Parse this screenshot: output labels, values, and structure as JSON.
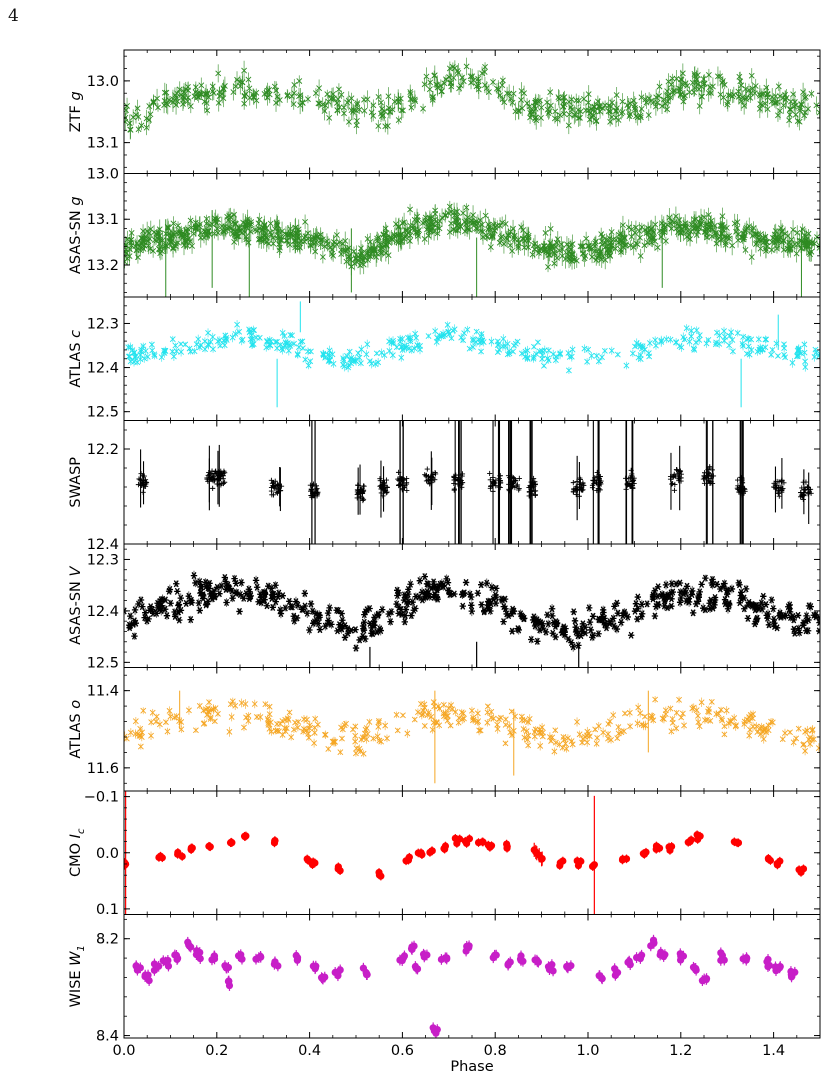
{
  "page_number": "4",
  "figure": {
    "xlabel": "Phase",
    "x_ticks": [
      "0.0",
      "0.2",
      "0.4",
      "0.6",
      "0.8",
      "1.0",
      "1.2",
      "1.4"
    ]
  },
  "chart_data": [
    {
      "id": "ztf-g",
      "type": "scatter",
      "ylabel": "ZTF g",
      "ylim": [
        13.15,
        12.95
      ],
      "inverted_y": true,
      "yticks": [
        13.0,
        13.1
      ],
      "ytick_labels": [
        "13.0",
        "13.1"
      ],
      "xlim": [
        0,
        1.5
      ],
      "color": "#2e8b22",
      "marker": "x",
      "series": [
        {
          "x": [
            0.0,
            0.05,
            0.1,
            0.15,
            0.2,
            0.25,
            0.3,
            0.35,
            0.4,
            0.45,
            0.5,
            0.55,
            0.6,
            0.65,
            0.7,
            0.75,
            0.8,
            0.85,
            0.9,
            0.95,
            1.0,
            1.05,
            1.1,
            1.15,
            1.2,
            1.25,
            1.3,
            1.35,
            1.4,
            1.45,
            1.5
          ],
          "y": [
            13.07,
            13.05,
            13.03,
            13.02,
            13.02,
            13.01,
            13.02,
            13.02,
            13.02,
            13.03,
            13.05,
            13.05,
            13.04,
            13.02,
            13.0,
            13.0,
            13.01,
            13.03,
            13.05,
            13.04,
            13.05,
            13.05,
            13.05,
            13.03,
            13.01,
            13.01,
            13.02,
            13.02,
            13.03,
            13.04,
            13.04
          ]
        }
      ]
    },
    {
      "id": "asassn-g",
      "type": "scatter",
      "ylabel": "ASAS-SN g",
      "ylim": [
        13.27,
        13.0
      ],
      "inverted_y": true,
      "yticks": [
        13.0,
        13.1,
        13.2
      ],
      "ytick_labels": [
        "13.0",
        "13.1",
        "13.2"
      ],
      "xlim": [
        0,
        1.5
      ],
      "color": "#2e8b22",
      "marker": "x",
      "series": [
        {
          "x": [
            0.0,
            0.05,
            0.1,
            0.15,
            0.2,
            0.25,
            0.3,
            0.35,
            0.4,
            0.45,
            0.5,
            0.55,
            0.6,
            0.65,
            0.7,
            0.75,
            0.8,
            0.85,
            0.9,
            0.95,
            1.0,
            1.05,
            1.1,
            1.15,
            1.2,
            1.25,
            1.3,
            1.35,
            1.4,
            1.45,
            1.5
          ],
          "y": [
            13.17,
            13.15,
            13.14,
            13.13,
            13.12,
            13.12,
            13.13,
            13.14,
            13.14,
            13.16,
            13.18,
            13.16,
            13.13,
            13.11,
            13.1,
            13.11,
            13.13,
            13.15,
            13.16,
            13.17,
            13.17,
            13.16,
            13.14,
            13.13,
            13.12,
            13.12,
            13.13,
            13.14,
            13.15,
            13.15,
            13.15
          ]
        }
      ]
    },
    {
      "id": "atlas-c",
      "type": "scatter",
      "ylabel": "ATLAS c",
      "ylim": [
        12.52,
        12.24
      ],
      "inverted_y": true,
      "yticks": [
        12.3,
        12.4,
        12.5
      ],
      "ytick_labels": [
        "12.3",
        "12.4",
        "12.5"
      ],
      "xlim": [
        0,
        1.5
      ],
      "color": "#22e3ee",
      "marker": "x",
      "series": [
        {
          "x": [
            0.0,
            0.05,
            0.1,
            0.15,
            0.2,
            0.25,
            0.3,
            0.35,
            0.4,
            0.45,
            0.5,
            0.55,
            0.6,
            0.65,
            0.7,
            0.75,
            0.8,
            0.85,
            0.9,
            0.95,
            1.0,
            1.05,
            1.1,
            1.15,
            1.2,
            1.25,
            1.3,
            1.35,
            1.4,
            1.45,
            1.5
          ],
          "y": [
            12.38,
            12.37,
            12.36,
            12.35,
            12.34,
            12.33,
            12.34,
            12.35,
            12.36,
            12.38,
            12.39,
            12.37,
            12.35,
            12.34,
            12.32,
            12.33,
            12.35,
            12.36,
            12.37,
            12.38,
            12.38,
            12.37,
            12.36,
            12.35,
            12.34,
            12.33,
            12.34,
            12.35,
            12.36,
            12.37,
            12.37
          ]
        }
      ]
    },
    {
      "id": "swasp",
      "type": "scatter",
      "ylabel": "SWASP",
      "ylim": [
        12.4,
        12.14
      ],
      "inverted_y": true,
      "yticks": [
        12.2,
        12.4
      ],
      "ytick_labels": [
        "12.2",
        "12.4"
      ],
      "xlim": [
        0,
        1.5
      ],
      "color": "#000000",
      "marker": "+",
      "series": [
        {
          "x": [
            0.04,
            0.19,
            0.21,
            0.33,
            0.41,
            0.51,
            0.56,
            0.6,
            0.66,
            0.72,
            0.8,
            0.84,
            0.88,
            0.98,
            1.02,
            1.09,
            1.19,
            1.26,
            1.33,
            1.41,
            1.47
          ],
          "y": [
            12.27,
            12.26,
            12.26,
            12.28,
            12.29,
            12.29,
            12.28,
            12.27,
            12.26,
            12.27,
            12.27,
            12.27,
            12.28,
            12.28,
            12.27,
            12.27,
            12.26,
            12.26,
            12.28,
            12.28,
            12.29
          ]
        }
      ]
    },
    {
      "id": "asassn-v",
      "type": "scatter",
      "ylabel": "ASAS-SN V",
      "ylim": [
        12.51,
        12.27
      ],
      "inverted_y": true,
      "yticks": [
        12.3,
        12.4,
        12.5
      ],
      "ytick_labels": [
        "12.3",
        "12.4",
        "12.5"
      ],
      "xlim": [
        0,
        1.5
      ],
      "color": "#000000",
      "marker": "*",
      "series": [
        {
          "x": [
            0.0,
            0.05,
            0.1,
            0.15,
            0.2,
            0.25,
            0.3,
            0.35,
            0.4,
            0.45,
            0.5,
            0.55,
            0.6,
            0.65,
            0.7,
            0.75,
            0.8,
            0.85,
            0.9,
            0.95,
            1.0,
            1.05,
            1.1,
            1.15,
            1.2,
            1.25,
            1.3,
            1.35,
            1.4,
            1.45,
            1.5
          ],
          "y": [
            12.42,
            12.41,
            12.39,
            12.37,
            12.36,
            12.36,
            12.37,
            12.39,
            12.4,
            12.42,
            12.44,
            12.42,
            12.39,
            12.37,
            12.36,
            12.37,
            12.39,
            12.41,
            12.43,
            12.44,
            12.43,
            12.42,
            12.4,
            12.38,
            12.37,
            12.37,
            12.38,
            12.39,
            12.41,
            12.42,
            12.42
          ]
        }
      ]
    },
    {
      "id": "atlas-o",
      "type": "scatter",
      "ylabel": "ATLAS o",
      "ylim": [
        11.66,
        11.34
      ],
      "inverted_y": true,
      "yticks": [
        11.4,
        11.6
      ],
      "ytick_labels": [
        "11.4",
        "11.6"
      ],
      "xlim": [
        0,
        1.5
      ],
      "color": "#f5a623",
      "marker": "x",
      "series": [
        {
          "x": [
            0.0,
            0.05,
            0.1,
            0.15,
            0.2,
            0.25,
            0.3,
            0.35,
            0.4,
            0.45,
            0.5,
            0.55,
            0.6,
            0.65,
            0.7,
            0.75,
            0.8,
            0.85,
            0.9,
            0.95,
            1.0,
            1.05,
            1.1,
            1.15,
            1.2,
            1.25,
            1.3,
            1.35,
            1.4,
            1.45,
            1.5
          ],
          "y": [
            11.51,
            11.49,
            11.48,
            11.47,
            11.46,
            11.46,
            11.47,
            11.49,
            11.5,
            11.52,
            11.53,
            11.51,
            11.49,
            11.47,
            11.46,
            11.47,
            11.48,
            11.5,
            11.52,
            11.53,
            11.52,
            11.5,
            11.48,
            11.47,
            11.46,
            11.46,
            11.47,
            11.49,
            11.51,
            11.52,
            11.52
          ]
        }
      ]
    },
    {
      "id": "cmo-ic",
      "type": "scatter",
      "ylabel": "CMO I_c",
      "ylim": [
        0.11,
        -0.11
      ],
      "inverted_y": true,
      "yticks": [
        -0.1,
        0.0,
        0.1
      ],
      "ytick_labels": [
        "−0.1",
        "0.0",
        "0.1"
      ],
      "xlim": [
        0,
        1.5
      ],
      "color": "#ff0000",
      "marker": "o",
      "series": [
        {
          "x": [
            0.005,
            0.08,
            0.12,
            0.15,
            0.18,
            0.23,
            0.26,
            0.33,
            0.4,
            0.41,
            0.46,
            0.55,
            0.61,
            0.64,
            0.66,
            0.69,
            0.72,
            0.74,
            0.77,
            0.79,
            0.82,
            0.89,
            0.9,
            0.94,
            0.98,
            1.01,
            1.08,
            1.12,
            1.15,
            1.18,
            1.22,
            1.24,
            1.32,
            1.39,
            1.41,
            1.46
          ],
          "y": [
            0.02,
            0.01,
            0.0,
            -0.01,
            -0.01,
            -0.02,
            -0.03,
            -0.02,
            0.01,
            0.02,
            0.03,
            0.04,
            0.01,
            0.0,
            0.0,
            -0.01,
            -0.02,
            -0.02,
            -0.02,
            -0.01,
            -0.01,
            0.0,
            0.01,
            0.02,
            0.02,
            0.02,
            0.01,
            0.0,
            -0.01,
            -0.01,
            -0.02,
            -0.03,
            -0.02,
            0.01,
            0.02,
            0.03
          ],
          "yerr": [
            0.13,
            0.005,
            0.005,
            0.005,
            0.005,
            0.005,
            0.005,
            0.005,
            0.005,
            0.005,
            0.005,
            0.005,
            0.005,
            0.005,
            0.005,
            0.005,
            0.005,
            0.005,
            0.005,
            0.005,
            0.005,
            0.01,
            0.01,
            0.005,
            0.005,
            0.12,
            0.005,
            0.005,
            0.005,
            0.005,
            0.005,
            0.005,
            0.005,
            0.005,
            0.005,
            0.005
          ]
        }
      ]
    },
    {
      "id": "wise-w1",
      "type": "scatter",
      "ylabel": "WISE W_1",
      "ylim": [
        8.405,
        8.15
      ],
      "inverted_y": true,
      "yticks": [
        8.2,
        8.4
      ],
      "ytick_labels": [
        "8.2",
        "8.4"
      ],
      "xlim": [
        0,
        1.5
      ],
      "color": "#c71ec7",
      "marker": "o",
      "series": [
        {
          "x": [
            0.03,
            0.05,
            0.07,
            0.09,
            0.11,
            0.14,
            0.16,
            0.19,
            0.22,
            0.23,
            0.25,
            0.29,
            0.33,
            0.37,
            0.41,
            0.43,
            0.46,
            0.52,
            0.6,
            0.62,
            0.63,
            0.65,
            0.67,
            0.69,
            0.74,
            0.8,
            0.83,
            0.86,
            0.89,
            0.92,
            0.96,
            1.03,
            1.06,
            1.09,
            1.11,
            1.14,
            1.16,
            1.2,
            1.23,
            1.25,
            1.29,
            1.34,
            1.39,
            1.41,
            1.44
          ],
          "y": [
            8.26,
            8.28,
            8.26,
            8.25,
            8.24,
            8.21,
            8.23,
            8.24,
            8.26,
            8.29,
            8.24,
            8.24,
            8.25,
            8.24,
            8.26,
            8.28,
            8.27,
            8.27,
            8.24,
            8.22,
            8.26,
            8.23,
            8.39,
            8.24,
            8.22,
            8.24,
            8.25,
            8.24,
            8.25,
            8.26,
            8.26,
            8.28,
            8.27,
            8.25,
            8.24,
            8.21,
            8.23,
            8.24,
            8.26,
            8.29,
            8.24,
            8.24,
            8.25,
            8.26,
            8.27
          ]
        }
      ]
    }
  ]
}
